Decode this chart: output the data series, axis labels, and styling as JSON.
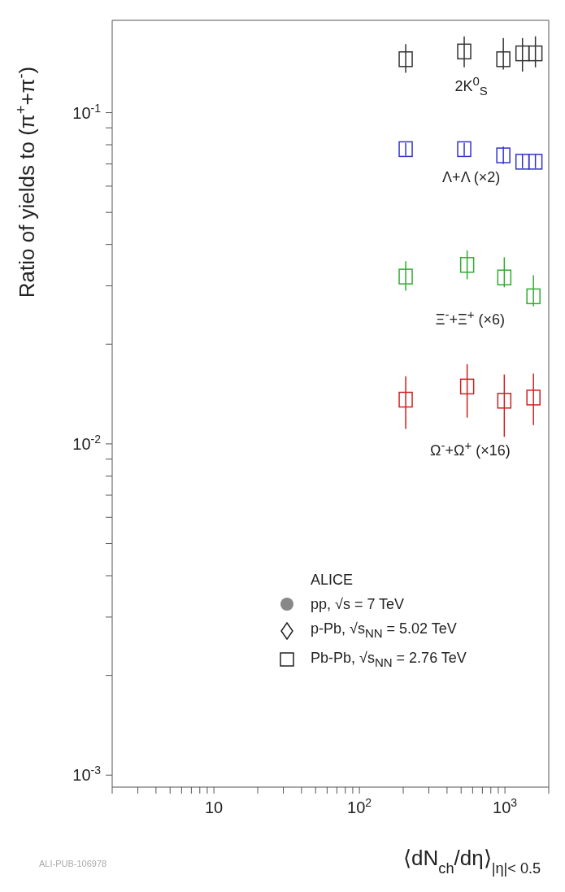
{
  "chart_data": {
    "type": "scatter",
    "xlabel": "⟨dN$_{ch}$/dη⟩$_{|η|< 0.5}$",
    "ylabel": "Ratio of yields to (π$^{+}$+π$^{-}$)",
    "log": "xy",
    "xlim": [
      2,
      2000
    ],
    "ylim": [
      0.00092,
      0.19
    ],
    "xticks": [
      {
        "value": 2,
        "label": null
      },
      {
        "value": 3,
        "label": null
      },
      {
        "value": 4,
        "label": null
      },
      {
        "value": 5,
        "label": null
      },
      {
        "value": 6,
        "label": null
      },
      {
        "value": 7,
        "label": null
      },
      {
        "value": 8,
        "label": null
      },
      {
        "value": 9,
        "label": null
      },
      {
        "value": 10,
        "label": "10"
      },
      {
        "value": 20,
        "label": null
      },
      {
        "value": 30,
        "label": null
      },
      {
        "value": 40,
        "label": null
      },
      {
        "value": 50,
        "label": null
      },
      {
        "value": 60,
        "label": null
      },
      {
        "value": 70,
        "label": null
      },
      {
        "value": 80,
        "label": null
      },
      {
        "value": 90,
        "label": null
      },
      {
        "value": 100,
        "label": "10$^{2}$"
      },
      {
        "value": 200,
        "label": null
      },
      {
        "value": 300,
        "label": null
      },
      {
        "value": 400,
        "label": null
      },
      {
        "value": 500,
        "label": null
      },
      {
        "value": 600,
        "label": null
      },
      {
        "value": 700,
        "label": null
      },
      {
        "value": 800,
        "label": null
      },
      {
        "value": 900,
        "label": null
      },
      {
        "value": 1000,
        "label": "10$^{3}$"
      },
      {
        "value": 2000,
        "label": null
      }
    ],
    "yticks": [
      {
        "value": 0.001,
        "label": "10$^{-3}$"
      },
      {
        "value": 0.002,
        "label": null
      },
      {
        "value": 0.003,
        "label": null
      },
      {
        "value": 0.004,
        "label": null
      },
      {
        "value": 0.005,
        "label": null
      },
      {
        "value": 0.006,
        "label": null
      },
      {
        "value": 0.007,
        "label": null
      },
      {
        "value": 0.008,
        "label": null
      },
      {
        "value": 0.009,
        "label": null
      },
      {
        "value": 0.01,
        "label": "10$^{-2}$"
      },
      {
        "value": 0.02,
        "label": null
      },
      {
        "value": 0.03,
        "label": null
      },
      {
        "value": 0.04,
        "label": null
      },
      {
        "value": 0.05,
        "label": null
      },
      {
        "value": 0.06,
        "label": null
      },
      {
        "value": 0.07,
        "label": null
      },
      {
        "value": 0.08,
        "label": null
      },
      {
        "value": 0.09,
        "label": null
      },
      {
        "value": 0.1,
        "label": "10$^{-1}$"
      }
    ],
    "marker": "square",
    "grid": false,
    "series": [
      {
        "name": "2K$^{0}$$_{S}$",
        "color": "#333333",
        "x": [
          208,
          525,
          975,
          1320,
          1620
        ],
        "values": [
          0.145,
          0.153,
          0.145,
          0.151,
          0.151
        ],
        "errors": [
          [
            0.132,
            0.161
          ],
          [
            0.137,
            0.17
          ],
          [
            0.135,
            0.168
          ],
          [
            0.133,
            0.168
          ],
          [
            0.137,
            0.17
          ]
        ]
      },
      {
        "name": "Λ+Λ (×2)",
        "color": "#3333cc",
        "x": [
          208,
          525,
          975,
          1320,
          1620
        ],
        "values": [
          0.0776,
          0.0776,
          0.0743,
          0.0711,
          0.0711
        ],
        "errors": [
          [
            0.074,
            0.081
          ],
          [
            0.074,
            0.081
          ],
          [
            0.07,
            0.079
          ],
          [
            0.068,
            0.075
          ],
          [
            0.068,
            0.075
          ]
        ]
      },
      {
        "name": "Ξ$^{-}$+Ξ$^{+}$ (×6)",
        "color": "#33aa33",
        "x": [
          208,
          550,
          990,
          1570
        ],
        "values": [
          0.032,
          0.0347,
          0.0318,
          0.0279
        ],
        "errors": [
          [
            0.029,
            0.0356
          ],
          [
            0.0314,
            0.0384
          ],
          [
            0.0297,
            0.0366
          ],
          [
            0.026,
            0.0323
          ]
        ]
      },
      {
        "name": "Ω$^{-}$+Ω$^{+}$ (×16)",
        "color": "#cc2222",
        "x": [
          208,
          550,
          990,
          1570
        ],
        "values": [
          0.0136,
          0.0149,
          0.0135,
          0.0138
        ],
        "errors": [
          [
            0.0111,
            0.016
          ],
          [
            0.012,
            0.0174
          ],
          [
            0.0105,
            0.0162
          ],
          [
            0.0114,
            0.0163
          ]
        ]
      }
    ],
    "annotations": [
      "ALICE",
      "pp, √s = 7 TeV",
      "p-Pb, √s$_{NN}$ = 5.02 TeV",
      "Pb-Pb, √s$_{NN}$ = 2.76 TeV",
      "ALI-PUB-106978"
    ]
  }
}
